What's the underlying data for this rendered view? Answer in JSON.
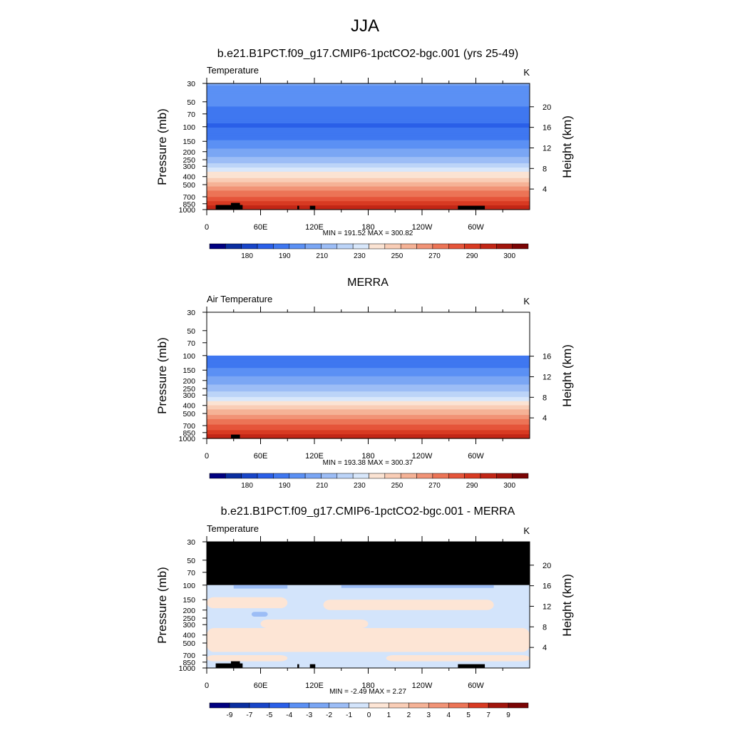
{
  "figure_title": "JJA",
  "chart_data": [
    {
      "type": "heatmap",
      "title": "b.e21.B1PCT.f09_g17.CMIP6-1pctCO2-bgc.001 (yrs 25-49)",
      "left_label": "Temperature",
      "units": "K",
      "ylabel": "Pressure (mb)",
      "ylabel_right": "Height (km)",
      "xlabel": "",
      "x_tick_labels": [
        "0",
        "60E",
        "120E",
        "180",
        "120W",
        "60W"
      ],
      "y_tick_labels": [
        "30",
        "50",
        "70",
        "100",
        "150",
        "200",
        "250",
        "300",
        "400",
        "500",
        "700",
        "850",
        "1000"
      ],
      "height_tick_labels": [
        "4",
        "8",
        "12",
        "16",
        "20"
      ],
      "y_scale": "log",
      "ylim": [
        1000,
        30
      ],
      "stats": "MIN = 191.52  MAX = 300.82",
      "colorbar_labels": [
        "180",
        "190",
        "210",
        "230",
        "250",
        "270",
        "290",
        "300"
      ],
      "profile": {
        "pressure": [
          30,
          50,
          70,
          100,
          150,
          200,
          250,
          300,
          400,
          500,
          700,
          850,
          1000
        ],
        "value": [
          214,
          209,
          203,
          199,
          207,
          215,
          222,
          230,
          246,
          258,
          274,
          283,
          293
        ]
      },
      "min": 191.52,
      "max": 300.82
    },
    {
      "type": "heatmap",
      "title": "MERRA",
      "left_label": "Air Temperature",
      "units": "K",
      "ylabel": "Pressure (mb)",
      "ylabel_right": "Height (km)",
      "xlabel": "",
      "x_tick_labels": [
        "0",
        "60E",
        "120E",
        "180",
        "120W",
        "60W"
      ],
      "y_tick_labels": [
        "30",
        "50",
        "70",
        "100",
        "150",
        "200",
        "250",
        "300",
        "400",
        "500",
        "700",
        "850",
        "1000"
      ],
      "height_tick_labels": [
        "4",
        "8",
        "12",
        "16"
      ],
      "y_scale": "log",
      "ylim": [
        1000,
        30
      ],
      "data_top_pressure": 100,
      "stats": "MIN = 193.38  MAX = 300.37",
      "colorbar_labels": [
        "180",
        "190",
        "210",
        "230",
        "250",
        "270",
        "290",
        "300"
      ],
      "profile": {
        "pressure": [
          100,
          150,
          200,
          250,
          300,
          400,
          500,
          700,
          850,
          1000
        ],
        "value": [
          200,
          208,
          216,
          223,
          231,
          247,
          259,
          275,
          284,
          294
        ]
      },
      "min": 193.38,
      "max": 300.37
    },
    {
      "type": "heatmap",
      "title": "b.e21.B1PCT.f09_g17.CMIP6-1pctCO2-bgc.001 - MERRA",
      "left_label": "Temperature",
      "units": "K",
      "ylabel": "Pressure (mb)",
      "ylabel_right": "Height (km)",
      "xlabel": "",
      "x_tick_labels": [
        "0",
        "60E",
        "120E",
        "180",
        "120W",
        "60W"
      ],
      "y_tick_labels": [
        "30",
        "50",
        "70",
        "100",
        "150",
        "200",
        "250",
        "300",
        "400",
        "500",
        "700",
        "850",
        "1000"
      ],
      "height_tick_labels": [
        "4",
        "8",
        "12",
        "16",
        "20"
      ],
      "y_scale": "log",
      "ylim": [
        1000,
        30
      ],
      "missing_above_pressure": 100,
      "stats": "MIN =  -2.49  MAX =   2.27",
      "colorbar_labels": [
        "-9",
        "-7",
        "-5",
        "-4",
        "-3",
        "-2",
        "-1",
        "0",
        "1",
        "2",
        "3",
        "4",
        "5",
        "7",
        "9"
      ],
      "min": -2.49,
      "max": 2.27
    }
  ],
  "colors": {
    "temperature_scale": [
      "#000080",
      "#0a2ea0",
      "#1845c8",
      "#2a5fe8",
      "#3f77f0",
      "#5b90f4",
      "#7aa6f4",
      "#9cbdf6",
      "#bcd4f8",
      "#d8e7fb",
      "#fbe3d3",
      "#f9cdb6",
      "#f5b296",
      "#f19376",
      "#ec7456",
      "#e5553a",
      "#d83a22",
      "#c22616",
      "#a1150c",
      "#7a0404"
    ],
    "difference_scale": [
      "#000080",
      "#0a2ea0",
      "#1845c8",
      "#2a5fe8",
      "#5b90f4",
      "#7aa6f4",
      "#9cbdf6",
      "#d3e4fb",
      "#fde5d5",
      "#f9cdb6",
      "#f5b296",
      "#f19376",
      "#ec7456",
      "#d83a22",
      "#a1150c",
      "#7a0404"
    ],
    "missing": "#000000"
  }
}
